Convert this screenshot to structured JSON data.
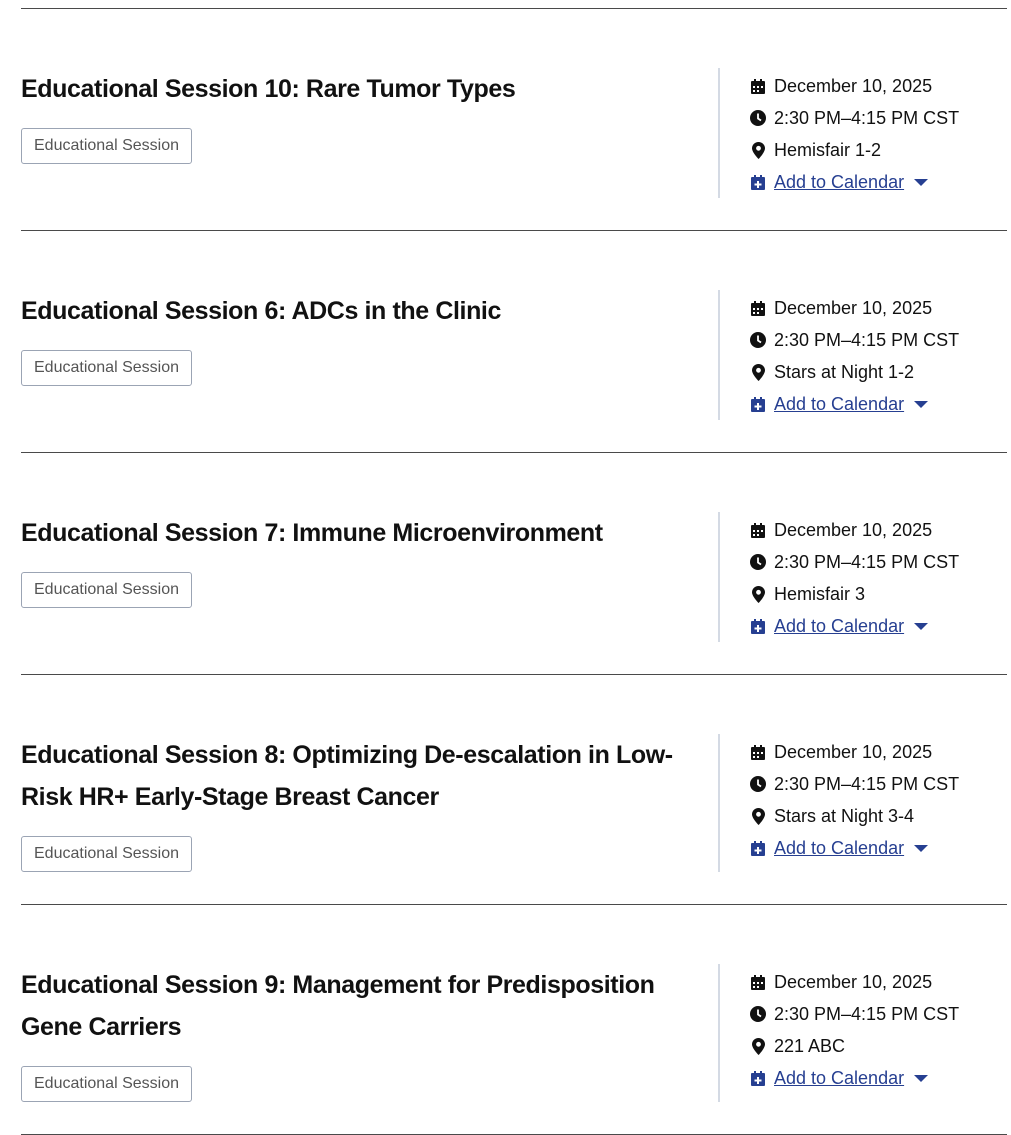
{
  "colors": {
    "link": "#263f91",
    "divider": "#4a4a4a",
    "meta_border": "#d4dae4",
    "badge_border": "#9ba4b4"
  },
  "icons": {
    "date": "calendar-icon",
    "time": "clock-icon",
    "location": "map-pin-icon",
    "add": "calendar-plus-icon",
    "menu": "caret-down-icon"
  },
  "sessions": [
    {
      "title": "Educational Session 10: Rare Tumor Types",
      "badge": "Educational Session",
      "date": "December 10, 2025",
      "time": "2:30 PM–4:15 PM CST",
      "location": "Hemisfair 1-2",
      "add_label": "Add to Calendar"
    },
    {
      "title": "Educational Session 6: ADCs in the Clinic",
      "badge": "Educational Session",
      "date": "December 10, 2025",
      "time": "2:30 PM–4:15 PM CST",
      "location": "Stars at Night 1-2",
      "add_label": "Add to Calendar"
    },
    {
      "title": "Educational Session 7: Immune Microenvironment",
      "badge": "Educational Session",
      "date": "December 10, 2025",
      "time": "2:30 PM–4:15 PM CST",
      "location": "Hemisfair 3",
      "add_label": "Add to Calendar"
    },
    {
      "title": "Educational Session 8: Optimizing De-escalation in Low-Risk HR+ Early-Stage Breast Cancer",
      "badge": "Educational Session",
      "date": "December 10, 2025",
      "time": "2:30 PM–4:15 PM CST",
      "location": "Stars at Night 3-4",
      "add_label": "Add to Calendar"
    },
    {
      "title": "Educational Session 9: Management for Predisposition Gene Carriers",
      "badge": "Educational Session",
      "date": "December 10, 2025",
      "time": "2:30 PM–4:15 PM CST",
      "location": "221 ABC",
      "add_label": "Add to Calendar"
    }
  ]
}
